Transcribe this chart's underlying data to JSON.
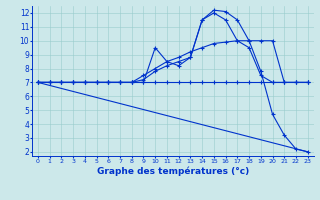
{
  "xlabel": "Graphe des températures (°c)",
  "background_color": "#cce8ea",
  "grid_color": "#99cccc",
  "line_color": "#0033cc",
  "xlim": [
    0,
    23
  ],
  "ylim": [
    2,
    12
  ],
  "xticks": [
    0,
    1,
    2,
    3,
    4,
    5,
    6,
    7,
    8,
    9,
    10,
    11,
    12,
    13,
    14,
    15,
    16,
    17,
    18,
    19,
    20,
    21,
    22,
    23
  ],
  "yticks": [
    2,
    3,
    4,
    5,
    6,
    7,
    8,
    9,
    10,
    11,
    12
  ],
  "series": [
    {
      "x": [
        0,
        1,
        2,
        3,
        4,
        5,
        6,
        7,
        8,
        9,
        10,
        11,
        12,
        13,
        14,
        15,
        16,
        17,
        18,
        19,
        20,
        21,
        22,
        23
      ],
      "y": [
        7,
        7,
        7,
        7,
        7,
        7,
        7,
        7,
        7,
        7,
        9.5,
        8.5,
        8.2,
        8.8,
        11.5,
        12.2,
        12.1,
        11.5,
        10.0,
        7.8,
        4.7,
        3.2,
        2.2,
        2.0
      ],
      "has_markers": true
    },
    {
      "x": [
        0,
        1,
        2,
        3,
        4,
        5,
        6,
        7,
        8,
        9,
        10,
        11,
        12,
        13,
        14,
        15,
        16,
        17,
        18,
        19,
        20,
        21,
        22,
        23
      ],
      "y": [
        7,
        7,
        7,
        7,
        7,
        7,
        7,
        7,
        7.0,
        7.5,
        8.0,
        8.5,
        8.8,
        9.2,
        9.5,
        9.8,
        9.9,
        10.0,
        10.0,
        10.0,
        10.0,
        7.0,
        7.0,
        7.0
      ],
      "has_markers": true
    },
    {
      "x": [
        0,
        1,
        2,
        3,
        4,
        5,
        6,
        7,
        8,
        9,
        10,
        11,
        12,
        13,
        14,
        15,
        16,
        17,
        18,
        19,
        20,
        21,
        22,
        23
      ],
      "y": [
        7,
        7,
        7,
        7,
        7,
        7,
        7,
        7,
        7.0,
        7.2,
        7.8,
        8.2,
        8.5,
        8.8,
        11.5,
        12.0,
        11.5,
        10.0,
        9.5,
        7.5,
        7.0,
        7.0,
        7.0,
        7.0
      ],
      "has_markers": true
    },
    {
      "x": [
        0,
        1,
        2,
        3,
        4,
        5,
        6,
        7,
        8,
        9,
        10,
        11,
        12,
        13,
        14,
        15,
        16,
        17,
        18,
        19,
        20,
        21,
        22,
        23
      ],
      "y": [
        7,
        7,
        7,
        7,
        7,
        7,
        7,
        7,
        7,
        7,
        7,
        7,
        7,
        7,
        7,
        7,
        7,
        7,
        7,
        7,
        7,
        7,
        7,
        7
      ],
      "has_markers": true
    },
    {
      "x": [
        0,
        23
      ],
      "y": [
        7,
        2
      ],
      "has_markers": false
    }
  ]
}
